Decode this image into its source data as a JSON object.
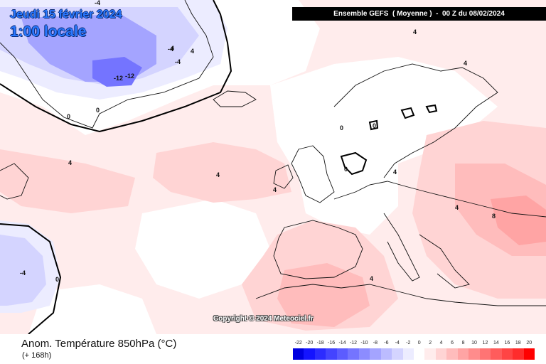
{
  "header": {
    "date": "Jeudi 15 février 2024",
    "local_time": "1:00 locale",
    "run_info": "Ensemble GEFS  ( Moyenne )  -  00 Z du 08/02/2024"
  },
  "copyright": "Copyright © 2024 Meteociel.fr",
  "footer": {
    "parameter": "Anom. Température 850hPa (°C)",
    "lead_time": "(+ 168h)"
  },
  "legend": {
    "labels": [
      "-22",
      "-20",
      "-18",
      "-16",
      "-14",
      "-12",
      "-10",
      "-8",
      "-6",
      "-4",
      "-2",
      "0",
      "2",
      "4",
      "6",
      "8",
      "10",
      "12",
      "14",
      "16",
      "18",
      "20"
    ],
    "colors": [
      "#0000e0",
      "#1414ff",
      "#2c2cff",
      "#4444ff",
      "#5c5cff",
      "#7474ff",
      "#8c8cff",
      "#a4a4ff",
      "#bcbcff",
      "#d4d4ff",
      "#ececff",
      "#ffffff",
      "#ffecec",
      "#ffd4d4",
      "#ffbcbc",
      "#ffa4a4",
      "#ff8c8c",
      "#ff7474",
      "#ff5c5c",
      "#ff4444",
      "#ff2c2c",
      "#ff0000"
    ]
  },
  "map": {
    "contour_labels": [
      "-4",
      "-4",
      "-4",
      "-12",
      "-12",
      "4",
      "4",
      "0",
      "0",
      "0",
      "0",
      "0",
      "4",
      "4",
      "4",
      "4",
      "4",
      "4",
      "8",
      "-4",
      "0",
      "4",
      "4"
    ]
  }
}
